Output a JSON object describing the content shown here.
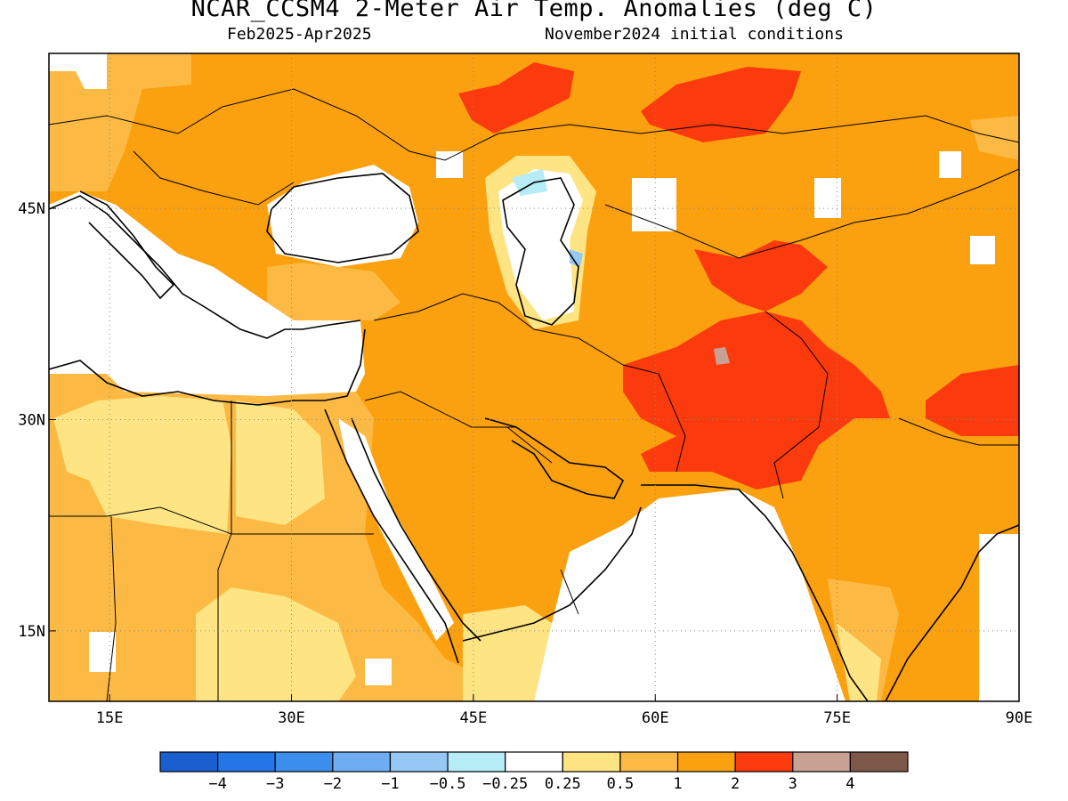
{
  "title": "NCAR_CCSM4 2-Meter Air Temp. Anomalies (deg C)",
  "period": "Feb2025-Apr2025",
  "initial_conditions": "November2024 initial conditions",
  "map": {
    "lon_range": [
      10,
      90
    ],
    "lat_range": [
      10,
      56
    ],
    "lon_ticks": [
      {
        "value": 15,
        "label": "15E"
      },
      {
        "value": 30,
        "label": "30E"
      },
      {
        "value": 45,
        "label": "45E"
      },
      {
        "value": 60,
        "label": "60E"
      },
      {
        "value": 75,
        "label": "75E"
      },
      {
        "value": 90,
        "label": "90E"
      }
    ],
    "lat_ticks": [
      {
        "value": 45,
        "label": "45N"
      },
      {
        "value": 30,
        "label": "30N"
      },
      {
        "value": 15,
        "label": "15N"
      }
    ],
    "gridlines": "dotted",
    "colorbar": {
      "bins": [
        {
          "color": "#1a5fd0"
        },
        {
          "color": "#2476e6"
        },
        {
          "color": "#3c8eec"
        },
        {
          "color": "#6eadf2"
        },
        {
          "color": "#96c8f6"
        },
        {
          "color": "#b6ecf6"
        },
        {
          "color": "#ffffff"
        },
        {
          "color": "#fee482"
        },
        {
          "color": "#fcba44"
        },
        {
          "color": "#fba00f"
        },
        {
          "color": "#fb3a0e"
        },
        {
          "color": "#c9a192"
        },
        {
          "color": "#7e5848"
        }
      ],
      "labels": [
        "-4",
        "-3",
        "-2",
        "-1",
        "-0.5",
        "-0.25",
        "0.25",
        "0.5",
        "1",
        "2",
        "3",
        "4"
      ]
    }
  }
}
